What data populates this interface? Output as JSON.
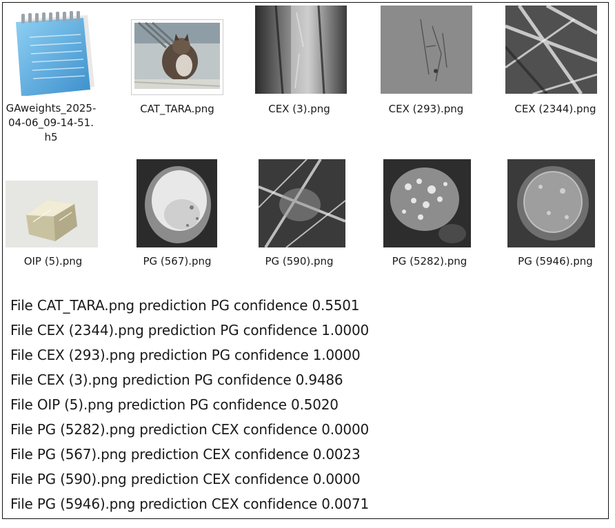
{
  "files_row1": [
    {
      "name": "GAweights_2025-04-06_09-14-51.h5",
      "icon": "notepad-document-icon"
    },
    {
      "name": "CAT_TARA.png",
      "icon": "cat-photo-thumbnail"
    },
    {
      "name": "CEX (3).png",
      "icon": "grayscale-micrograph-thumbnail"
    },
    {
      "name": "CEX (293).png",
      "icon": "gray-micrograph-thumbnail"
    },
    {
      "name": "CEX (2344).png",
      "icon": "fiber-micrograph-thumbnail"
    }
  ],
  "files_row2": [
    {
      "name": "OIP (5).png",
      "icon": "crystal-photo-thumbnail"
    },
    {
      "name": "PG (567).png",
      "icon": "bright-blob-micrograph-thumbnail"
    },
    {
      "name": "PG (590).png",
      "icon": "fiber-micrograph-thumbnail"
    },
    {
      "name": "PG (5282).png",
      "icon": "granular-micrograph-thumbnail"
    },
    {
      "name": "PG (5946).png",
      "icon": "cell-micrograph-thumbnail"
    }
  ],
  "predictions": [
    "File CAT_TARA.png prediction PG confidence 0.5501",
    "File CEX (2344).png prediction PG confidence 1.0000",
    "File CEX (293).png prediction PG confidence 1.0000",
    "File CEX (3).png prediction PG confidence 0.9486",
    "File OIP (5).png prediction PG confidence 0.5020",
    "File PG (5282).png prediction CEX confidence 0.0000",
    "File PG (567).png prediction CEX confidence 0.0023",
    "File PG (590).png prediction CEX confidence 0.0000",
    "File PG (5946).png prediction CEX confidence 0.0071"
  ],
  "colors": {
    "text": "#1a1a1a",
    "border": "#111111",
    "notepad_blue": "#5fb2e3"
  }
}
